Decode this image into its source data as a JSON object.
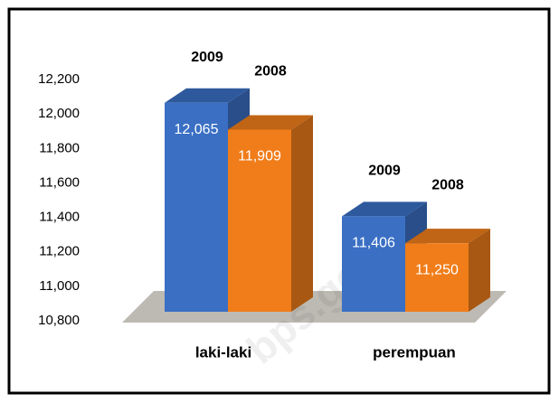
{
  "chart_data": {
    "type": "bar3d",
    "categories": [
      "laki-laki",
      "perempuan"
    ],
    "series": [
      {
        "name": "2009",
        "color": "#3a6fc4",
        "values": [
          12065,
          11406
        ],
        "value_labels": [
          "12,065",
          "11,406"
        ]
      },
      {
        "name": "2008",
        "color": "#f07d1a",
        "values": [
          11909,
          11250
        ],
        "value_labels": [
          "11,909",
          "11,250"
        ]
      }
    ],
    "ylim": [
      10800,
      12200
    ],
    "yticks": [
      {
        "value": 10800,
        "label": "10,800"
      },
      {
        "value": 11000,
        "label": "11,000"
      },
      {
        "value": 11200,
        "label": "11,200"
      },
      {
        "value": 11400,
        "label": "11,400"
      },
      {
        "value": 11600,
        "label": "11,600"
      },
      {
        "value": 11800,
        "label": "11,800"
      },
      {
        "value": 12000,
        "label": "12,000"
      },
      {
        "value": 12200,
        "label": "12,200"
      }
    ],
    "watermark": "bps.go.id"
  }
}
